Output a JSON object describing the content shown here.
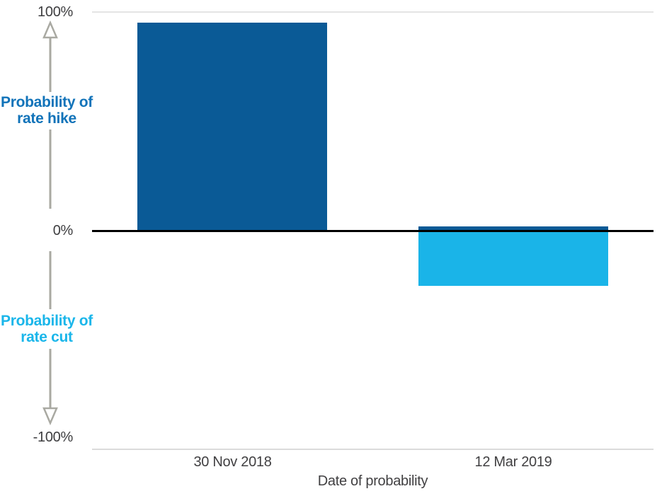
{
  "chart_data": {
    "type": "bar",
    "title": "",
    "xlabel": "Date of probability",
    "ylabel": "",
    "categories": [
      "30 Nov 2018",
      "12 Mar 2019"
    ],
    "series": [
      {
        "name": "Probability of rate hike",
        "color": "#0a5a96",
        "values": [
          95,
          2
        ]
      },
      {
        "name": "Probability of rate cut",
        "color": "#1ab4e8",
        "values": [
          0,
          -25
        ]
      }
    ],
    "ylim": [
      -100,
      100
    ],
    "y_ticks": [
      "100%",
      "0%",
      "-100%"
    ],
    "grid": "boundary lines at +100% and -100% only; bold black zero axis",
    "legend_position": "left-side colored annotations with vertical double arrow"
  },
  "annotations": {
    "hike_label": "Probability of rate hike",
    "cut_label": "Probability of rate cut",
    "hike_label_color": "#1173b9",
    "cut_label_color": "#1ab6ea",
    "arrow_color": "#a9a9a2"
  },
  "colors": {
    "background": "#ffffff",
    "zero_axis": "#000000",
    "gridline_top": "#e4e4e4",
    "gridline_bottom": "#dbdbdb",
    "tick_text": "#3e3e40"
  }
}
